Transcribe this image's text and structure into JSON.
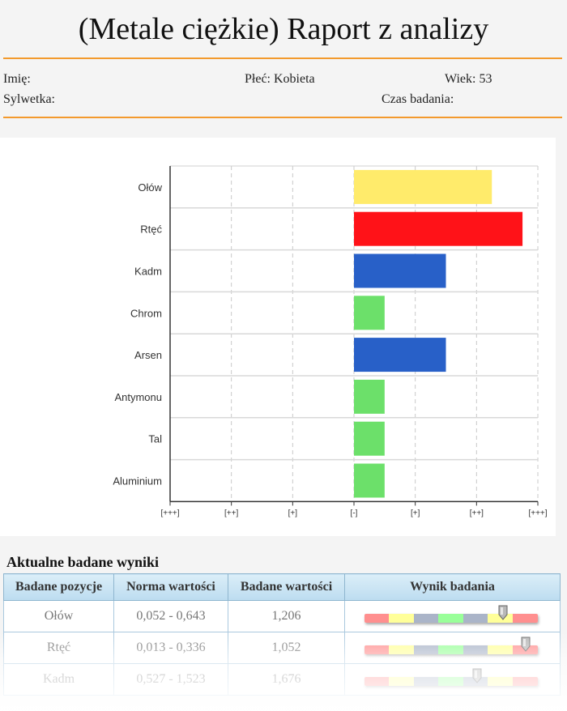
{
  "report": {
    "title": "(Metale ciężkie) Raport z analizy",
    "name_label": "Imię:",
    "gender_label": "Płeć: Kobieta",
    "age_label": "Wiek: 53",
    "figure_label": "Sylwetka:",
    "time_label": "Czas badania:"
  },
  "chart_data": {
    "type": "bar",
    "orientation": "horizontal",
    "categories": [
      "Ołów",
      "Rtęć",
      "Kadm",
      "Chrom",
      "Arsen",
      "Antymonu",
      "Tal",
      "Aluminium"
    ],
    "values": [
      2.25,
      2.75,
      1.5,
      0.5,
      1.5,
      0.5,
      0.5,
      0.5
    ],
    "colors": [
      "#ffeb6b",
      "#ff1218",
      "#2860c8",
      "#6ce06a",
      "#2860c8",
      "#6ce06a",
      "#6ce06a",
      "#6ce06a"
    ],
    "x_ticks": [
      "[+++]",
      "[++]",
      "[+]",
      "[-]",
      "[+]",
      "[++]",
      "[+++]"
    ],
    "xlim": [
      -3,
      3
    ],
    "grid": true
  },
  "results": {
    "title": "Aktualne badane wyniki",
    "headers": [
      "Badane pozycje",
      "Norma wartości",
      "Badane wartości",
      "Wynik badania"
    ],
    "rows": [
      {
        "name": "Ołów",
        "norm": "0,052 - 0,643",
        "value": "1,206",
        "level": 0.8
      },
      {
        "name": "Rtęć",
        "norm": "0,013 - 0,336",
        "value": "1,052",
        "level": 0.93
      },
      {
        "name": "Kadm",
        "norm": "0,527 - 1,523",
        "value": "1,676",
        "level": 0.65
      }
    ],
    "scale_colors": [
      "#ff8f8f",
      "#ffff99",
      "#aab4c8",
      "#99ff99",
      "#aab4c8",
      "#ffff99",
      "#ff8f8f"
    ]
  }
}
